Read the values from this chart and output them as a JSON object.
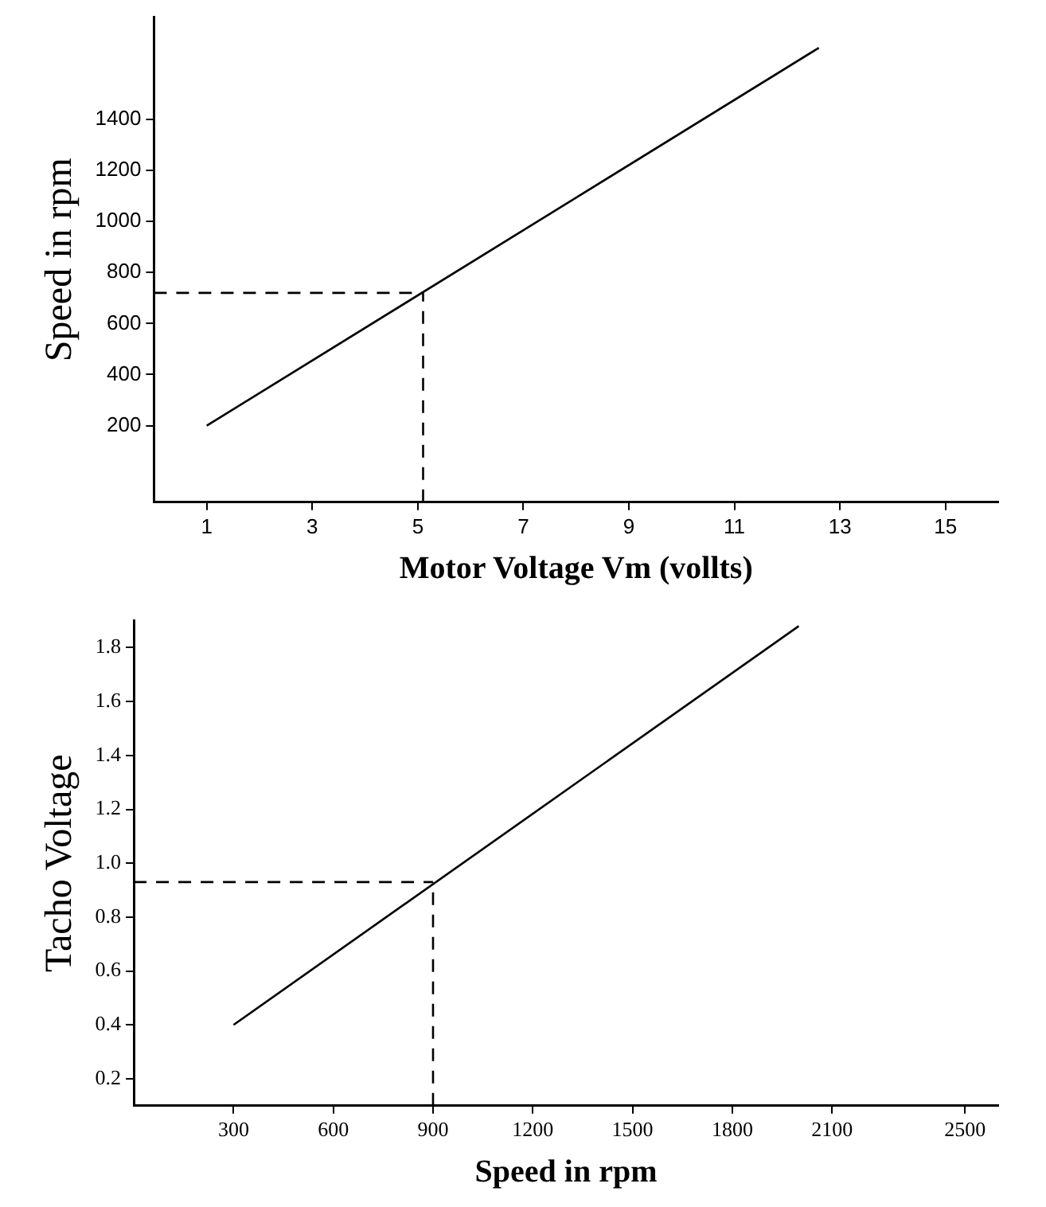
{
  "chart_data": [
    {
      "type": "line",
      "xlabel": "Motor Voltage Vm (vollts)",
      "ylabel": "Speed in rpm",
      "xlim": [
        0,
        16
      ],
      "ylim": [
        -100,
        1800
      ],
      "xticks": [
        1,
        3,
        5,
        7,
        9,
        11,
        13,
        15
      ],
      "yticks": [
        200,
        400,
        600,
        800,
        1000,
        1200,
        1400
      ],
      "grid": false,
      "legend": false,
      "marker": "none",
      "series": [
        {
          "color": "#000000",
          "x": [
            1,
            12.6
          ],
          "values": [
            200,
            1680
          ],
          "line_style": "solid"
        },
        {
          "color": "#000000",
          "x": [
            0,
            5.1
          ],
          "values": [
            720,
            720
          ],
          "line_style": "dashed"
        },
        {
          "color": "#000000",
          "x": [
            5.1,
            5.1
          ],
          "values": [
            -100,
            720
          ],
          "line_style": "dashed"
        }
      ]
    },
    {
      "type": "line",
      "xlabel": "Speed in rpm",
      "ylabel": "Tacho Voltage",
      "xlim": [
        0,
        2600
      ],
      "ylim": [
        0.1,
        1.9
      ],
      "xticks": [
        300,
        600,
        900,
        1200,
        1500,
        1800,
        2100,
        2500
      ],
      "yticks": [
        {
          "value": 0.2,
          "label": "0.2"
        },
        {
          "value": 0.4,
          "label": "0.4"
        },
        {
          "value": 0.6,
          "label": "0.6"
        },
        {
          "value": 0.8,
          "label": "0.8"
        },
        {
          "value": 1.0,
          "label": "1.0"
        },
        {
          "value": 1.2,
          "label": "1.2"
        },
        {
          "value": 1.4,
          "label": "1.4"
        },
        {
          "value": 1.6,
          "label": "1.6"
        },
        {
          "value": 1.8,
          "label": "1.8"
        }
      ],
      "grid": false,
      "legend": false,
      "marker": "none",
      "series": [
        {
          "color": "#000000",
          "x": [
            300,
            2000
          ],
          "values": [
            0.4,
            1.88
          ],
          "line_style": "solid"
        },
        {
          "color": "#000000",
          "x": [
            0,
            900
          ],
          "values": [
            0.93,
            0.93
          ],
          "line_style": "dashed"
        },
        {
          "color": "#000000",
          "x": [
            900,
            900
          ],
          "values": [
            0.1,
            0.93
          ],
          "line_style": "dashed"
        }
      ]
    }
  ]
}
